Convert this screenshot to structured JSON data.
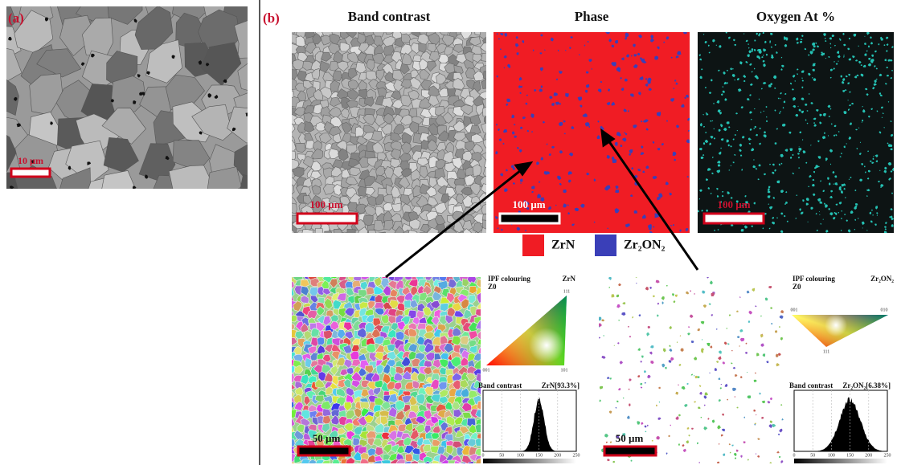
{
  "panel_a": {
    "label": "(a)",
    "scale_bar": "10 µm"
  },
  "panel_b": {
    "label": "(b)",
    "maps": [
      {
        "title": "Band contrast",
        "scale_bar": "100 µm"
      },
      {
        "title": "Phase",
        "scale_bar": "100 µm"
      },
      {
        "title": "Oxygen At %",
        "scale_bar": "100 µm"
      }
    ],
    "legend": [
      "ZrN",
      "Zr₂ON₂"
    ],
    "ipf": [
      {
        "scale_bar": "50 µm",
        "ipf_title": "IPF colouring",
        "direction": "Z0",
        "phase": "ZrN",
        "corners": [
          "111",
          "001",
          "101"
        ],
        "histogram_title": "Band contrast",
        "histogram_phase": "ZrN[93.3%]",
        "histogram_ticks": [
          "0",
          "50",
          "100",
          "150",
          "200",
          "250"
        ]
      },
      {
        "scale_bar": "50 µm",
        "ipf_title": "IPF colouring",
        "direction": "Z0",
        "phase": "Zr₂ON₂",
        "corners": [
          "001",
          "010",
          "111"
        ],
        "histogram_title": "Band contrast",
        "histogram_phase": "Zr₂ON₂[6.38%]",
        "histogram_ticks": [
          "0",
          "50",
          "100",
          "150",
          "200",
          "250"
        ]
      }
    ]
  }
}
